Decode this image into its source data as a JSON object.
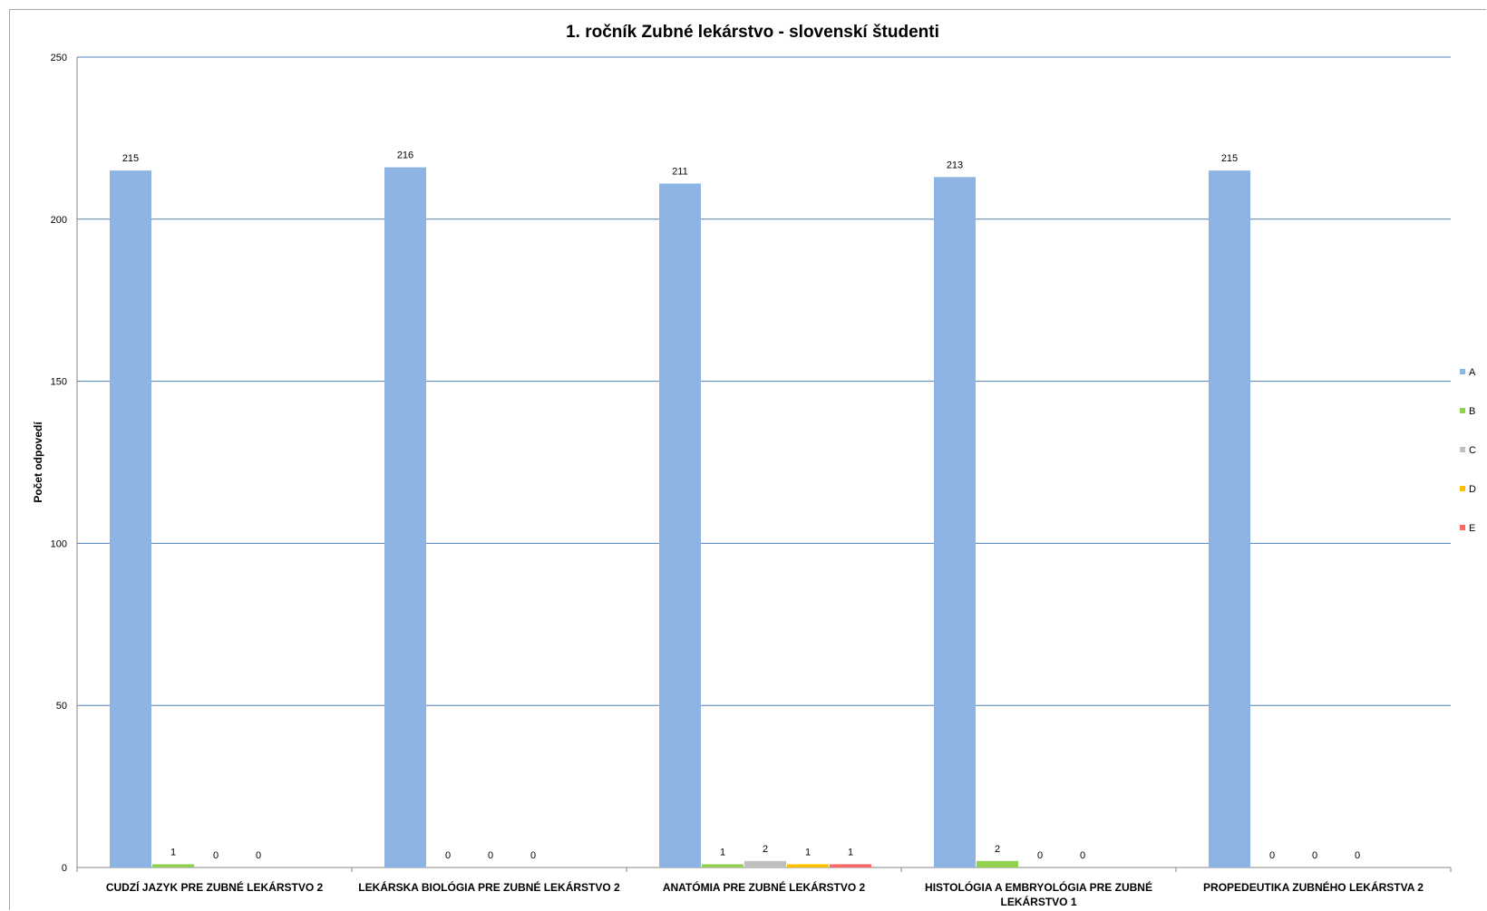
{
  "chart_data": {
    "type": "bar",
    "title": "1. ročník Zubné lekárstvo - slovenskí študenti",
    "ylabel": "Počet odpovedí",
    "xlabel": "",
    "ylim": [
      0,
      250
    ],
    "yticks": [
      0,
      50,
      100,
      150,
      200,
      250
    ],
    "grid": true,
    "legend_position": "right",
    "categories": [
      [
        "CUDZÍ JAZYK PRE ZUBNÉ LEKÁRSTVO 2"
      ],
      [
        "LEKÁRSKA BIOLÓGIA PRE ZUBNÉ LEKÁRSTVO 2"
      ],
      [
        "ANATÓMIA PRE ZUBNÉ LEKÁRSTVO 2"
      ],
      [
        "HISTOLÓGIA A EMBRYOLÓGIA PRE ZUBNÉ",
        "LEKÁRSTVO 1"
      ],
      [
        "PROPEDEUTIKA ZUBNÉHO LEKÁRSTVA 2"
      ]
    ],
    "series": [
      {
        "name": "A",
        "color": "#8eb4e3",
        "values": [
          215,
          216,
          211,
          213,
          215
        ],
        "labels": [
          true,
          true,
          true,
          true,
          true
        ]
      },
      {
        "name": "B",
        "color": "#92d050",
        "values": [
          1,
          0,
          1,
          2,
          0
        ],
        "labels": [
          true,
          true,
          true,
          true,
          true
        ]
      },
      {
        "name": "C",
        "color": "#bfbfbf",
        "values": [
          0,
          0,
          2,
          0,
          0
        ],
        "labels": [
          true,
          true,
          true,
          true,
          true
        ]
      },
      {
        "name": "D",
        "color": "#ffc000",
        "values": [
          0,
          0,
          1,
          0,
          0
        ],
        "labels": [
          true,
          true,
          true,
          true,
          true
        ]
      },
      {
        "name": "E",
        "color": "#ff6666",
        "values": [
          0,
          0,
          1,
          0,
          0
        ],
        "labels": [
          false,
          false,
          true,
          false,
          false
        ]
      }
    ],
    "gridline_color": "#4f81bd"
  }
}
